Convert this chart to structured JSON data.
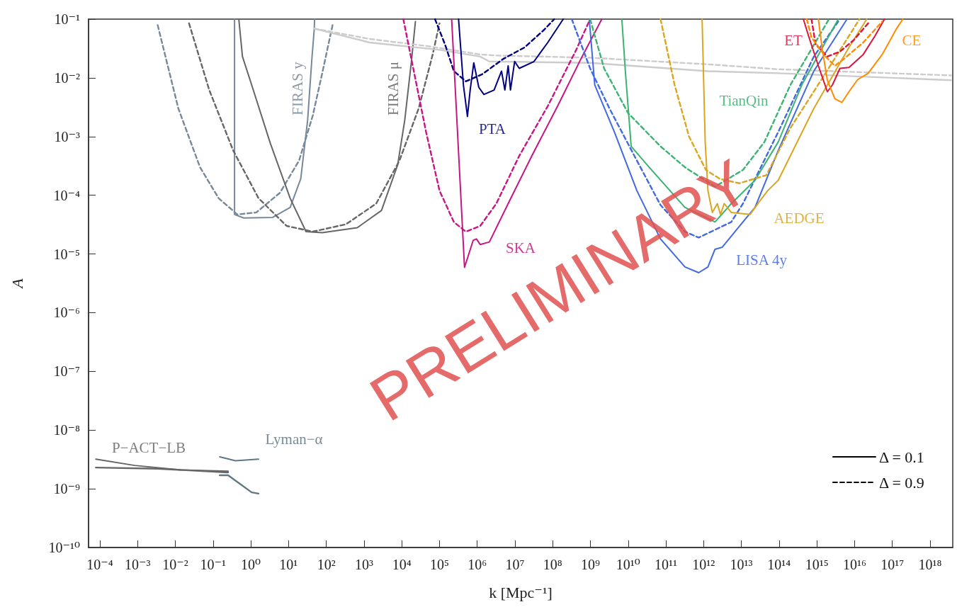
{
  "chart_data": {
    "type": "line",
    "xlabel": "k [Mpc⁻¹]",
    "ylabel": "A",
    "log": "xy",
    "grid": false,
    "marker": "none",
    "legend": "bottom right",
    "xlim": [
      5e-05,
      4e+18
    ],
    "ylim": [
      1e-10,
      0.1
    ],
    "xticks": [
      {
        "value": 0.0001,
        "label": "10⁻⁴"
      },
      {
        "value": 0.001,
        "label": "10⁻³"
      },
      {
        "value": 0.01,
        "label": "10⁻²"
      },
      {
        "value": 0.1,
        "label": "10⁻¹"
      },
      {
        "value": 1,
        "label": "10⁰"
      },
      {
        "value": 10,
        "label": "10¹"
      },
      {
        "value": 100,
        "label": "10²"
      },
      {
        "value": 1000.0,
        "label": "10³"
      },
      {
        "value": 10000.0,
        "label": "10⁴"
      },
      {
        "value": 100000.0,
        "label": "10⁵"
      },
      {
        "value": 1000000.0,
        "label": "10⁶"
      },
      {
        "value": 10000000.0,
        "label": "10⁷"
      },
      {
        "value": 100000000.0,
        "label": "10⁸"
      },
      {
        "value": 1000000000.0,
        "label": "10⁹"
      },
      {
        "value": 10000000000.0,
        "label": "10¹⁰"
      },
      {
        "value": 100000000000.0,
        "label": "10¹¹"
      },
      {
        "value": 1000000000000.0,
        "label": "10¹²"
      },
      {
        "value": 10000000000000.0,
        "label": "10¹³"
      },
      {
        "value": 100000000000000.0,
        "label": "10¹⁴"
      },
      {
        "value": 1000000000000000.0,
        "label": "10¹⁵"
      },
      {
        "value": 1e+16,
        "label": "10¹⁶"
      },
      {
        "value": 1e+17,
        "label": "10¹⁷"
      },
      {
        "value": 1e+18,
        "label": "10¹⁸"
      }
    ],
    "yticks": [
      {
        "value": 1e-10,
        "label": "10⁻¹⁰"
      },
      {
        "value": 1e-09,
        "label": "10⁻⁹"
      },
      {
        "value": 1e-08,
        "label": "10⁻⁸"
      },
      {
        "value": 1e-07,
        "label": "10⁻⁷"
      },
      {
        "value": 1e-06,
        "label": "10⁻⁶"
      },
      {
        "value": 1e-05,
        "label": "10⁻⁵"
      },
      {
        "value": 0.0001,
        "label": "10⁻⁴"
      },
      {
        "value": 0.001,
        "label": "10⁻³"
      },
      {
        "value": 0.01,
        "label": "10⁻²"
      },
      {
        "value": 0.1,
        "label": "10⁻¹"
      }
    ],
    "series": [
      {
        "name": "FIRAS y",
        "color": "#778899",
        "line_style": "solid",
        "x": [
          0.37,
          0.37,
          0.65,
          3.8,
          11,
          21,
          32,
          41,
          48,
          49
        ],
        "values": [
          0.1,
          4.7e-05,
          4.1e-05,
          4.2e-05,
          6.2e-05,
          0.00019,
          0.0019,
          0.019,
          0.069,
          0.1
        ]
      },
      {
        "color": "#778899",
        "line_style": "dashed",
        "x": [
          0.0034,
          0.012,
          0.045,
          0.14,
          0.44,
          1.4,
          5.9,
          19,
          44,
          78,
          150
        ],
        "values": [
          0.079,
          0.003,
          0.0003,
          8.9e-05,
          4.7e-05,
          5.1e-05,
          0.00011,
          0.00039,
          0.0023,
          0.012,
          0.085
        ]
      },
      {
        "name": "FIRAS μ",
        "color": "#666666",
        "line_style": "solid",
        "x": [
          0.48,
          0.6,
          1.05,
          3.3,
          11,
          29,
          78,
          660,
          2900,
          7800,
          12000.0,
          18000.0,
          23000.0
        ],
        "values": [
          0.1,
          0.023,
          0.0076,
          0.00076,
          8.9e-05,
          2.4e-05,
          2.3e-05,
          2.8e-05,
          5.5e-05,
          0.00033,
          0.0019,
          0.019,
          0.091
        ]
      },
      {
        "color": "#666666",
        "line_style": "dashed",
        "x": [
          0.023,
          0.079,
          0.34,
          1.6,
          8.9,
          44,
          330,
          2100,
          8700,
          28000.0,
          66000.0,
          100000.0
        ],
        "values": [
          0.085,
          0.0062,
          0.00058,
          8.9e-05,
          3e-05,
          2.4e-05,
          3.2e-05,
          7.2e-05,
          0.00039,
          0.003,
          0.025,
          0.085
        ]
      },
      {
        "color": "#cccccc",
        "line_style": "solid",
        "x": [
          48,
          1400,
          100000.0,
          1200000.0,
          2100000.0,
          1000000000.0,
          1300000000000.0,
          95000000000000.0,
          3.6e+18
        ],
        "values": [
          0.069,
          0.04,
          0.03,
          0.023,
          0.019,
          0.018,
          0.013,
          0.012,
          0.0091
        ]
      },
      {
        "color": "#cccccc",
        "line_style": "dashed",
        "x": [
          48,
          1400,
          44000.0,
          1200000.0,
          3200000.0,
          1000000000.0,
          1300000000000.0,
          95000000000000.0,
          3.6e+18
        ],
        "values": [
          0.069,
          0.046,
          0.035,
          0.025,
          0.024,
          0.022,
          0.017,
          0.014,
          0.011
        ]
      },
      {
        "name": "PTA",
        "color": "#000080",
        "line_style": "solid",
        "x": [
          320000.0,
          430000.0,
          550000.0,
          650000.0,
          810000.0,
          1100000.0,
          1500000.0,
          2800000.0,
          4400000.0,
          5400000.0,
          6600000.0,
          7600000.0,
          9800000.0,
          13000000.0,
          32000000.0,
          74000000.0,
          190000000.0
        ],
        "values": [
          0.1,
          0.0076,
          0.0022,
          0.0062,
          0.018,
          0.0069,
          0.0052,
          0.0062,
          0.013,
          0.0062,
          0.016,
          0.0062,
          0.019,
          0.0145,
          0.019,
          0.04,
          0.1
        ]
      },
      {
        "color": "#000080",
        "line_style": "dashed",
        "x": [
          76000.0,
          140000.0,
          240000.0,
          500000.0,
          1350000.0,
          4900000.0,
          18000000.0,
          58000000.0,
          110000000.0
        ],
        "values": [
          0.1,
          0.037,
          0.013,
          0.0087,
          0.0115,
          0.021,
          0.033,
          0.065,
          0.1
        ]
      },
      {
        "name": "SKA",
        "color": "#c71585",
        "line_style": "solid",
        "x": [
          210000.0,
          460000.0,
          780000.0,
          950000.0,
          1200000.0,
          2100000.0,
          6600000.0,
          28000000.0,
          135000000.0,
          560000000.0,
          2000000000.0
        ],
        "values": [
          0.1,
          5.9e-06,
          1.7e-05,
          1.8e-05,
          1.45e-05,
          1.6e-05,
          7.2e-05,
          0.00047,
          0.0033,
          0.021,
          0.1
        ]
      },
      {
        "color": "#c71585",
        "line_style": "dashed",
        "x": [
          11000.0,
          44000.0,
          100000.0,
          240000.0,
          500000.0,
          1200000.0,
          3200000.0,
          13000000.0,
          74000000.0,
          420000000.0,
          980000000.0
        ],
        "values": [
          0.1,
          0.0012,
          0.00012,
          3.5e-05,
          2.4e-05,
          3e-05,
          7.2e-05,
          0.00047,
          0.0033,
          0.03,
          0.1
        ]
      },
      {
        "name": "LISA 4y",
        "color": "#4169e1",
        "line_style": "solid",
        "x": [
          930000000.0,
          1300000000.0,
          4300000000.0,
          17000000000.0,
          72000000000.0,
          320000000000.0,
          740000000000.0,
          1300000000000.0,
          2000000000000.0,
          3100000000000.0,
          11000000000000.0,
          23000000000000.0,
          95000000000000.0,
          830000000000000.0,
          6300000000000000.0
        ],
        "values": [
          0.1,
          0.0076,
          0.0012,
          0.00012,
          1.8e-05,
          6e-06,
          4.8e-06,
          6e-06,
          1.2e-05,
          1.3e-05,
          3.5e-05,
          6.2e-05,
          0.00058,
          0.013,
          0.1
        ]
      },
      {
        "color": "#4169e1",
        "line_style": "dashed",
        "x": [
          320000000.0,
          980000000.0,
          3200000000.0,
          17000000000.0,
          72000000000.0,
          320000000000.0,
          740000000000.0,
          5400000000000.0,
          11000000000000.0,
          95000000000000.0,
          830000000000000.0,
          4100000000000000.0
        ],
        "values": [
          0.1,
          0.0145,
          0.003,
          0.00039,
          6.8e-05,
          2.4e-05,
          1.9e-05,
          3.5e-05,
          7.2e-05,
          0.0012,
          0.023,
          0.1
        ]
      },
      {
        "name": "TianQin",
        "color": "#3cb371",
        "line_style": "solid",
        "x": [
          6800000000.0,
          8500000000.0,
          12000000000.0,
          36000000000.0,
          320000000000.0,
          2000000000000.0,
          5400000000000.0,
          23000000000000.0,
          95000000000000.0,
          400000000000000.0,
          3700000000000000.0
        ],
        "values": [
          0.1,
          0.012,
          0.00068,
          0.0003,
          6.2e-05,
          3.5e-05,
          7.2e-05,
          0.00018,
          0.00081,
          0.0076,
          0.1
        ]
      },
      {
        "color": "#3cb371",
        "line_style": "dashed",
        "x": [
          980000000.0,
          2300000000.0,
          10000000000.0,
          72000000000.0,
          320000000000.0,
          2000000000000.0,
          11000000000000.0,
          41000000000000.0,
          200000000000000.0,
          2100000000000000.0
        ],
        "values": [
          0.1,
          0.0145,
          0.0025,
          0.00068,
          0.0003,
          0.00014,
          0.00027,
          0.00081,
          0.0076,
          0.1
        ]
      },
      {
        "name": "AEDGE",
        "color": "#daa520",
        "line_style": "solid",
        "x": [
          910000000000.0,
          1100000000000.0,
          1300000000000.0,
          1700000000000.0,
          2300000000000.0,
          2800000000000.0,
          3500000000000.0,
          5400000000000.0,
          17000000000000.0,
          30000000000000.0,
          50000000000000.0,
          95000000000000.0,
          830000000000000.0,
          7100000000000000.0,
          2.1e+16
        ],
        "values": [
          0.1,
          0.00081,
          0.00012,
          5.1e-05,
          7.2e-05,
          4.7e-05,
          7.2e-05,
          5.1e-05,
          4.7e-05,
          7.8e-05,
          0.00012,
          0.00018,
          0.003,
          0.033,
          0.1
        ]
      },
      {
        "color": "#daa520",
        "line_style": "dashed",
        "x": [
          72000000000.0,
          170000000000.0,
          410000000000.0,
          1150000000000.0,
          2700000000000.0,
          8900000000000.0,
          46000000000000.0,
          200000000000000.0,
          1700000000000000.0,
          1.35e+16
        ],
        "values": [
          0.1,
          0.0076,
          0.001,
          0.00027,
          0.00019,
          0.00016,
          0.00022,
          0.0014,
          0.012,
          0.1
        ]
      },
      {
        "name": "ET",
        "color": "#dc143c",
        "line_style": "solid",
        "x": [
          440000000000000.0,
          620000000000000.0,
          1100000000000000.0,
          1900000000000000.0,
          2600000000000000.0,
          4100000000000000.0,
          7100000000000000.0,
          1.7e+16,
          3.5e+16,
          6.2e+16
        ],
        "values": [
          0.1,
          0.049,
          0.016,
          0.0058,
          0.0076,
          0.0145,
          0.015,
          0.025,
          0.052,
          0.1
        ]
      },
      {
        "color": "#dc143c",
        "line_style": "dashed",
        "x": [
          720000000000000.0,
          930000000000000.0,
          1900000000000000.0,
          4100000000000000.0,
          9500000000000000.0,
          2.3e+16
        ],
        "values": [
          0.1,
          0.037,
          0.023,
          0.028,
          0.044,
          0.085
        ]
      },
      {
        "name": "CE",
        "color": "#ff8c00",
        "line_style": "solid",
        "x": [
          1100000000000000.0,
          1400000000000000.0,
          1900000000000000.0,
          3000000000000000.0,
          4600000000000000.0,
          7100000000000000.0,
          1.2e+16,
          2.3e+16,
          5.4e+16,
          1.3e+17,
          1.9e+17
        ],
        "values": [
          0.1,
          0.03,
          0.0091,
          0.0044,
          0.0038,
          0.0058,
          0.0093,
          0.012,
          0.025,
          0.069,
          0.1
        ]
      },
      {
        "color": "#ff8c00",
        "line_style": "dashed",
        "x": [
          540000000000000.0,
          720000000000000.0,
          1700000000000000.0,
          3000000000000000.0,
          5200000000000000.0,
          1.7e+16,
          5.4e+16
        ],
        "values": [
          0.1,
          0.049,
          0.023,
          0.016,
          0.021,
          0.04,
          0.091
        ]
      },
      {
        "name": "P−ACT−LB",
        "color": "#666666",
        "line_style": "solid",
        "x": [
          7.8e-05,
          0.00083,
          0.014,
          0.25
        ],
        "values": [
          3.2e-09,
          2.5e-09,
          2.1e-09,
          2e-09
        ]
      },
      {
        "color": "#666666",
        "line_style": "solid",
        "x": [
          7.8e-05,
          0.0034,
          0.25
        ],
        "values": [
          2.3e-09,
          2.2e-09,
          1.9e-09
        ]
      },
      {
        "name": "Lyman−α",
        "color": "#5f7785",
        "line_style": "solid",
        "x": [
          0.15,
          0.39,
          1.6
        ],
        "values": [
          3.5e-09,
          3e-09,
          3.2e-09
        ]
      },
      {
        "color": "#5f7785",
        "line_style": "solid",
        "x": [
          0.15,
          0.25,
          1.05,
          1.6
        ],
        "values": [
          1.7e-09,
          1.7e-09,
          8.7e-10,
          8.3e-10
        ]
      },
      {
        "name": "Δ = 0.1",
        "color": "#000000",
        "line_style": "solid"
      },
      {
        "name": "Δ = 0.9",
        "color": "#000000",
        "line_style": "dashed"
      }
    ],
    "annotations": [
      "PRELIMINARY"
    ]
  }
}
